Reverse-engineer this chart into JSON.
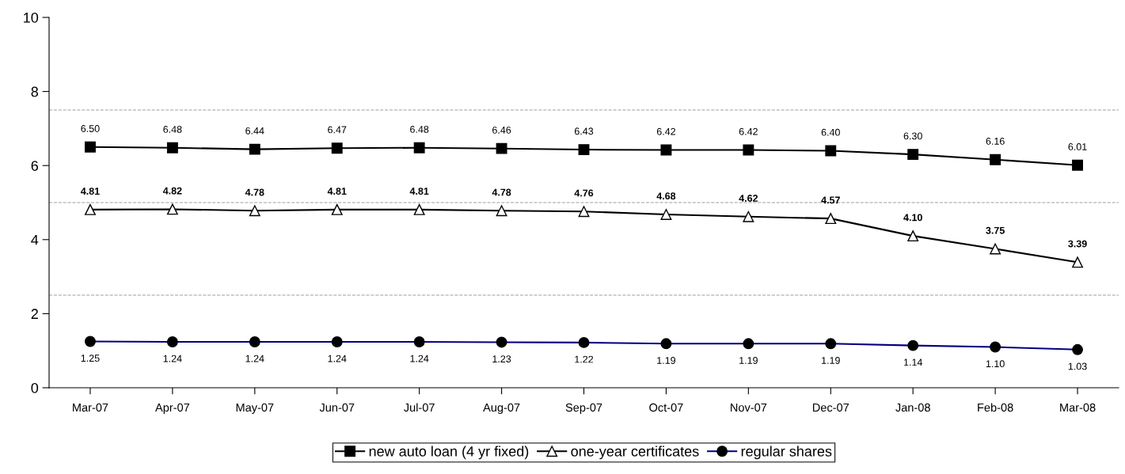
{
  "chart_data": {
    "type": "line",
    "categories": [
      "Mar-07",
      "Apr-07",
      "May-07",
      "Jun-07",
      "Jul-07",
      "Aug-07",
      "Sep-07",
      "Oct-07",
      "Nov-07",
      "Dec-07",
      "Jan-08",
      "Feb-08",
      "Mar-08"
    ],
    "series": [
      {
        "name": "new auto loan (4 yr fixed)",
        "color": "#000000",
        "marker": "square",
        "values": [
          6.5,
          6.48,
          6.44,
          6.47,
          6.48,
          6.46,
          6.43,
          6.42,
          6.42,
          6.4,
          6.3,
          6.16,
          6.01
        ],
        "value_labels": [
          "6.50",
          "6.48",
          "6.44",
          "6.47",
          "6.48",
          "6.46",
          "6.43",
          "6.42",
          "6.42",
          "6.40",
          "6.30",
          "6.16",
          "6.01"
        ]
      },
      {
        "name": "one-year certificates",
        "color": "#000000",
        "marker": "triangle",
        "values": [
          4.81,
          4.82,
          4.78,
          4.81,
          4.81,
          4.78,
          4.76,
          4.68,
          4.62,
          4.57,
          4.1,
          3.75,
          3.39
        ],
        "value_labels": [
          "4.81",
          "4.82",
          "4.78",
          "4.81",
          "4.81",
          "4.78",
          "4.76",
          "4.68",
          "4.62",
          "4.57",
          "4.10",
          "3.75",
          "3.39"
        ]
      },
      {
        "name": "regular shares",
        "color": "#000080",
        "marker": "circle",
        "values": [
          1.25,
          1.24,
          1.24,
          1.24,
          1.24,
          1.23,
          1.22,
          1.19,
          1.19,
          1.19,
          1.14,
          1.1,
          1.03
        ],
        "value_labels": [
          "1.25",
          "1.24",
          "1.24",
          "1.24",
          "1.24",
          "1.23",
          "1.22",
          "1.19",
          "1.19",
          "1.19",
          "1.14",
          "1.10",
          "1.03"
        ]
      }
    ],
    "ylim": [
      0,
      10
    ],
    "yticks": [
      0,
      2,
      4,
      6,
      8,
      10
    ],
    "ref_lines": [
      {
        "axis": "y",
        "value": 2.5,
        "color": "#a0a0a0",
        "line_style": "dashed"
      },
      {
        "axis": "y",
        "value": 5,
        "color": "#a0a0a0",
        "line_style": "dashed"
      },
      {
        "axis": "y",
        "value": 7.5,
        "color": "#a0a0a0",
        "line_style": "dashed"
      }
    ],
    "legend": "bottom",
    "grid": false,
    "line_style": "solid"
  }
}
